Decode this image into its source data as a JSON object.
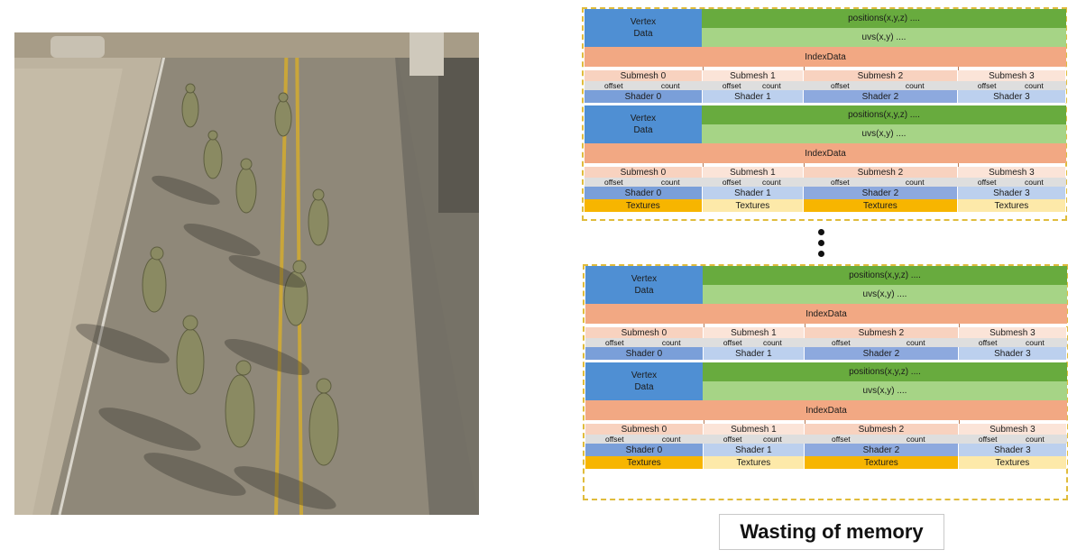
{
  "diagram": {
    "vertex_label_line1": "Vertex",
    "vertex_label_line2": "Data",
    "positions_label": "positions(x,y,z)  ....",
    "uvs_label": "uvs(x,y)  ....",
    "index_label": "IndexData",
    "submeshes": [
      "Submesh 0",
      "Submesh 1",
      "Submesh 2",
      "Submesh 3"
    ],
    "offset_label": "offset",
    "count_label": "count",
    "shaders": [
      "Shader 0",
      "Shader 1",
      "Shader 2",
      "Shader 3"
    ],
    "textures": [
      "Textures",
      "Textures",
      "Textures",
      "Textures"
    ],
    "continuation": "⋮"
  },
  "caption": "Wasting of memory",
  "colors": {
    "vertex": "#4f8fd3",
    "positions": "#68ab3e",
    "uvs": "#a6d486",
    "index": "#f2a883",
    "submesh": "#f8d2bf",
    "shader": "#8da9de",
    "textures": "#f7b500",
    "group_border": "#e0bc3c"
  }
}
